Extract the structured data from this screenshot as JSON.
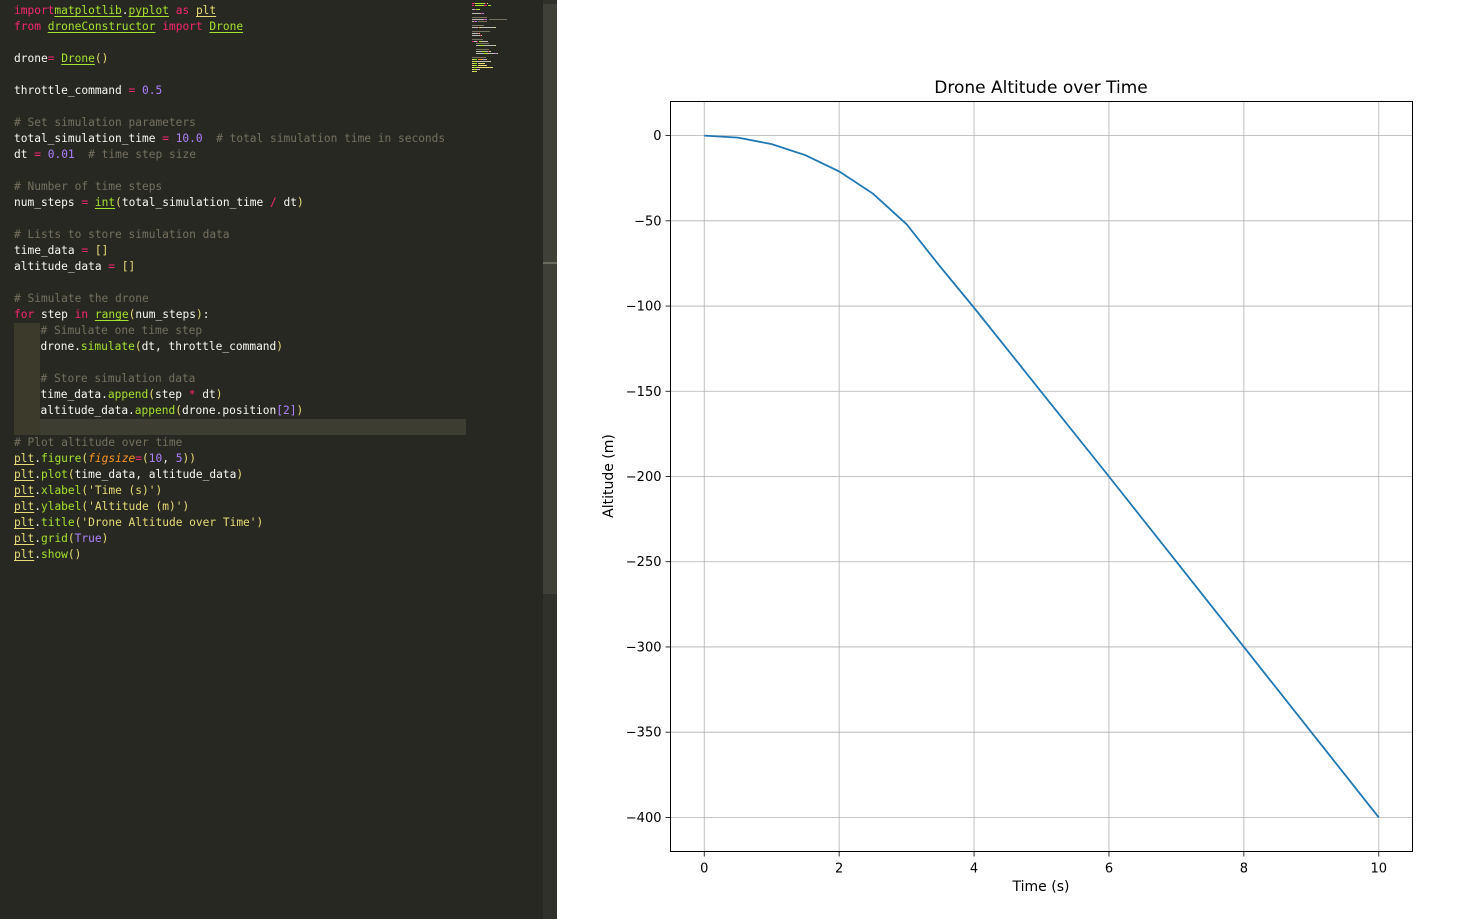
{
  "editor": {
    "lines": [
      [
        [
          "kw",
          "import"
        ],
        [
          "",
          "",
          " "
        ],
        [
          "mod",
          "matplotlib"
        ],
        [
          "",
          ".",
          ""
        ],
        [
          "mod",
          "pyplot"
        ],
        [
          "",
          " "
        ],
        [
          "kw",
          "as"
        ],
        [
          "",
          " "
        ],
        [
          "plt",
          "plt"
        ]
      ],
      [
        [
          "kw",
          "from"
        ],
        [
          "",
          " "
        ],
        [
          "mod",
          "droneConstructor"
        ],
        [
          "",
          " "
        ],
        [
          "kw",
          "import"
        ],
        [
          "",
          " "
        ],
        [
          "cls",
          "Drone"
        ]
      ],
      [],
      [
        [
          "",
          "drone"
        ],
        [
          "op",
          "="
        ],
        [
          "",
          " "
        ],
        [
          "cls",
          "Drone"
        ],
        [
          "par",
          "()"
        ]
      ],
      [],
      [
        [
          "",
          "throttle_command "
        ],
        [
          "op",
          "="
        ],
        [
          "",
          " "
        ],
        [
          "num",
          "0.5"
        ]
      ],
      [],
      [
        [
          "cm",
          "# Set simulation parameters"
        ]
      ],
      [
        [
          "",
          "total_simulation_time "
        ],
        [
          "op",
          "="
        ],
        [
          "",
          " "
        ],
        [
          "num",
          "10.0"
        ],
        [
          "",
          "  "
        ],
        [
          "cm",
          "# total simulation time in seconds"
        ]
      ],
      [
        [
          "",
          "dt "
        ],
        [
          "op",
          "="
        ],
        [
          "",
          " "
        ],
        [
          "num",
          "0.01"
        ],
        [
          "",
          "  "
        ],
        [
          "cm",
          "# time step size"
        ]
      ],
      [],
      [
        [
          "cm",
          "# Number of time steps"
        ]
      ],
      [
        [
          "",
          "num_steps "
        ],
        [
          "op",
          "="
        ],
        [
          "",
          " "
        ],
        [
          "bi",
          "int"
        ],
        [
          "par",
          "("
        ],
        [
          "",
          "total_simulation_time "
        ],
        [
          "op",
          "/"
        ],
        [
          "",
          " dt"
        ],
        [
          "par",
          ")"
        ]
      ],
      [],
      [
        [
          "cm",
          "# Lists to store simulation data"
        ]
      ],
      [
        [
          "",
          "time_data "
        ],
        [
          "op",
          "="
        ],
        [
          "",
          " "
        ],
        [
          "par",
          "[]"
        ]
      ],
      [
        [
          "",
          "altitude_data "
        ],
        [
          "op",
          "="
        ],
        [
          "",
          " "
        ],
        [
          "par",
          "[]"
        ]
      ],
      [],
      [
        [
          "cm",
          "# Simulate the drone"
        ]
      ],
      [
        [
          "kw",
          "for"
        ],
        [
          "",
          " step "
        ],
        [
          "kw",
          "in"
        ],
        [
          "",
          " "
        ],
        [
          "bi",
          "range"
        ],
        [
          "par",
          "("
        ],
        [
          "",
          "num_steps"
        ],
        [
          "par",
          ")"
        ],
        [
          "",
          ":"
        ]
      ],
      [
        [
          "cm",
          "# Simulate one time step"
        ]
      ],
      [
        [
          "",
          "drone."
        ],
        [
          "fn",
          "simulate"
        ],
        [
          "par",
          "("
        ],
        [
          "",
          "dt, throttle_command"
        ],
        [
          "par",
          ")"
        ]
      ],
      [],
      [
        [
          "cm",
          "# Store simulation data"
        ]
      ],
      [
        [
          "",
          "time_data."
        ],
        [
          "fn",
          "append"
        ],
        [
          "par",
          "("
        ],
        [
          "",
          "step "
        ],
        [
          "op",
          "*"
        ],
        [
          "",
          " dt"
        ],
        [
          "par",
          ")"
        ]
      ],
      [
        [
          "",
          "altitude_data."
        ],
        [
          "fn",
          "append"
        ],
        [
          "par",
          "("
        ],
        [
          "",
          "drone.position"
        ],
        [
          "num",
          "[2]"
        ],
        [
          "par",
          ")"
        ]
      ],
      [],
      [
        [
          "cm",
          "# Plot altitude over time"
        ]
      ],
      [
        [
          "plt",
          "plt"
        ],
        [
          "",
          "."
        ],
        [
          "fn",
          "figure"
        ],
        [
          "par",
          "("
        ],
        [
          "arg",
          "figsize"
        ],
        [
          "op",
          "="
        ],
        [
          "par",
          "("
        ],
        [
          "num",
          "10"
        ],
        [
          "",
          ", "
        ],
        [
          "num",
          "5"
        ],
        [
          "par",
          "))"
        ]
      ],
      [
        [
          "plt",
          "plt"
        ],
        [
          "",
          "."
        ],
        [
          "fn",
          "plot"
        ],
        [
          "par",
          "("
        ],
        [
          "",
          "time_data, altitude_data"
        ],
        [
          "par",
          ")"
        ]
      ],
      [
        [
          "plt",
          "plt"
        ],
        [
          "",
          "."
        ],
        [
          "fn",
          "xlabel"
        ],
        [
          "par",
          "("
        ],
        [
          "str",
          "'Time (s)'"
        ],
        [
          "par",
          ")"
        ]
      ],
      [
        [
          "plt",
          "plt"
        ],
        [
          "",
          "."
        ],
        [
          "fn",
          "ylabel"
        ],
        [
          "par",
          "("
        ],
        [
          "str",
          "'Altitude (m)'"
        ],
        [
          "par",
          ")"
        ]
      ],
      [
        [
          "plt",
          "plt"
        ],
        [
          "",
          "."
        ],
        [
          "fn",
          "title"
        ],
        [
          "par",
          "("
        ],
        [
          "str",
          "'Drone Altitude over Time'"
        ],
        [
          "par",
          ")"
        ]
      ],
      [
        [
          "plt",
          "plt"
        ],
        [
          "",
          "."
        ],
        [
          "fn",
          "grid"
        ],
        [
          "par",
          "("
        ],
        [
          "cst",
          "True"
        ],
        [
          "par",
          ")"
        ]
      ],
      [
        [
          "plt",
          "plt"
        ],
        [
          "",
          "."
        ],
        [
          "fn",
          "show"
        ],
        [
          "par",
          "()"
        ]
      ]
    ],
    "indented_lines": [
      20,
      21,
      22,
      23,
      24,
      25,
      26
    ]
  },
  "chart_data": {
    "type": "line",
    "title": "Drone Altitude over Time",
    "xlabel": "Time (s)",
    "ylabel": "Altitude (m)",
    "xlim": [
      -0.5,
      10.5
    ],
    "ylim": [
      -420,
      20
    ],
    "xticks": [
      0,
      2,
      4,
      6,
      8,
      10
    ],
    "yticks": [
      0,
      -50,
      -100,
      -150,
      -200,
      -250,
      -300,
      -350,
      -400
    ],
    "grid": true,
    "series": [
      {
        "color": "#1f77b4",
        "x": [
          0,
          0.5,
          1,
          1.5,
          2,
          2.5,
          3,
          3.5,
          4,
          5,
          6,
          7,
          8,
          9,
          10
        ],
        "y": [
          0,
          -1.2,
          -5,
          -11.5,
          -21,
          -34,
          -52,
          -77,
          -101,
          -150.5,
          -200,
          -250,
          -300,
          -350,
          -400
        ]
      }
    ]
  }
}
